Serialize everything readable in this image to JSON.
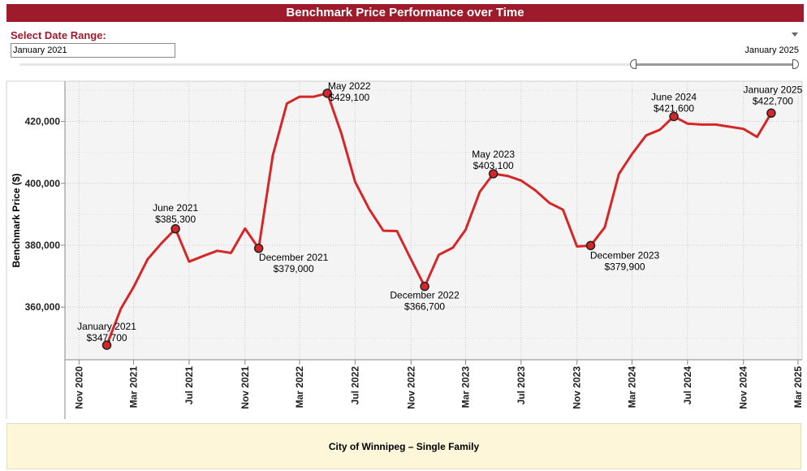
{
  "header": {
    "title": "Benchmark Price Performance over Time"
  },
  "filter": {
    "label": "Select Date Range:",
    "start_value": "January 2021",
    "end_value": "January 2025",
    "selected_fraction_start": 0.79,
    "selected_fraction_end": 1.0
  },
  "footer": {
    "caption": "City of Winnipeg – Single Family"
  },
  "colors": {
    "brand": "#9e1b2b",
    "line": "#d62728",
    "marker_fill": "#d62728",
    "marker_stroke": "#222222",
    "plot_bg": "#f4f4f4",
    "footer_bg": "#fdf6d8"
  },
  "chart_data": {
    "type": "line",
    "title": "",
    "xlabel": "",
    "ylabel": "Benchmark Price ($)",
    "ylim": [
      343000,
      433000
    ],
    "xlim": [
      "2020-10-01",
      "2025-03-10"
    ],
    "yticks": [
      360000,
      380000,
      400000,
      420000
    ],
    "ytick_labels": [
      "360,000",
      "380,000",
      "400,000",
      "420,000"
    ],
    "xticks": [
      "2020-11-01",
      "2021-03-01",
      "2021-07-01",
      "2021-11-01",
      "2022-03-01",
      "2022-07-01",
      "2022-11-01",
      "2023-03-01",
      "2023-07-01",
      "2023-11-01",
      "2024-03-01",
      "2024-07-01",
      "2024-11-01",
      "2025-03-01"
    ],
    "xtick_labels": [
      "Nov 2020",
      "Mar 2021",
      "Jul 2021",
      "Nov 2021",
      "Mar 2022",
      "Jul 2022",
      "Nov 2022",
      "Mar 2023",
      "Jul 2023",
      "Nov 2023",
      "Mar 2024",
      "Jul 2024",
      "Nov 2024",
      "Mar 2025"
    ],
    "grid": true,
    "series": [
      {
        "x": [
          "2021-01-01",
          "2021-02-01",
          "2021-03-01",
          "2021-04-01",
          "2021-05-01",
          "2021-06-01",
          "2021-07-01",
          "2021-08-01",
          "2021-09-01",
          "2021-10-01",
          "2021-11-01",
          "2021-12-01",
          "2022-01-01",
          "2022-02-01",
          "2022-03-01",
          "2022-04-01",
          "2022-05-01",
          "2022-06-01",
          "2022-07-01",
          "2022-08-01",
          "2022-09-01",
          "2022-10-01",
          "2022-11-01",
          "2022-12-01",
          "2023-01-01",
          "2023-02-01",
          "2023-03-01",
          "2023-04-01",
          "2023-05-01",
          "2023-06-01",
          "2023-07-01",
          "2023-08-01",
          "2023-09-01",
          "2023-10-01",
          "2023-11-01",
          "2023-12-01",
          "2024-01-01",
          "2024-02-01",
          "2024-03-01",
          "2024-04-01",
          "2024-05-01",
          "2024-06-01",
          "2024-07-01",
          "2024-08-01",
          "2024-09-01",
          "2024-10-01",
          "2024-11-01",
          "2024-12-01",
          "2025-01-01"
        ],
        "y": [
          347700,
          359500,
          366500,
          375500,
          380600,
          385300,
          374700,
          376500,
          378200,
          377500,
          385400,
          379000,
          409000,
          425800,
          428000,
          428000,
          429100,
          416000,
          400500,
          391700,
          384700,
          384600,
          375400,
          366700,
          376900,
          379200,
          385000,
          397200,
          403100,
          402400,
          400900,
          397800,
          393700,
          391500,
          379600,
          379900,
          385800,
          403000,
          409500,
          415500,
          417300,
          421600,
          419300,
          419000,
          419000,
          418300,
          417600,
          415000,
          422700
        ]
      }
    ],
    "annotations": [
      {
        "x": "2021-01-01",
        "y": 347700,
        "date_label": "January 2021",
        "value_label": "$347,700"
      },
      {
        "x": "2021-06-01",
        "y": 385300,
        "date_label": "June 2021",
        "value_label": "$385,300"
      },
      {
        "x": "2021-12-01",
        "y": 379000,
        "date_label": "December 2021",
        "value_label": "$379,000"
      },
      {
        "x": "2022-05-01",
        "y": 429100,
        "date_label": "May 2022",
        "value_label": "$429,100"
      },
      {
        "x": "2022-12-01",
        "y": 366700,
        "date_label": "December 2022",
        "value_label": "$366,700"
      },
      {
        "x": "2023-05-01",
        "y": 403100,
        "date_label": "May 2023",
        "value_label": "$403,100"
      },
      {
        "x": "2023-12-01",
        "y": 379900,
        "date_label": "December 2023",
        "value_label": "$379,900"
      },
      {
        "x": "2024-06-01",
        "y": 421600,
        "date_label": "June 2024",
        "value_label": "$421,600"
      },
      {
        "x": "2025-01-01",
        "y": 422700,
        "date_label": "January 2025",
        "value_label": "$422,700"
      }
    ]
  }
}
